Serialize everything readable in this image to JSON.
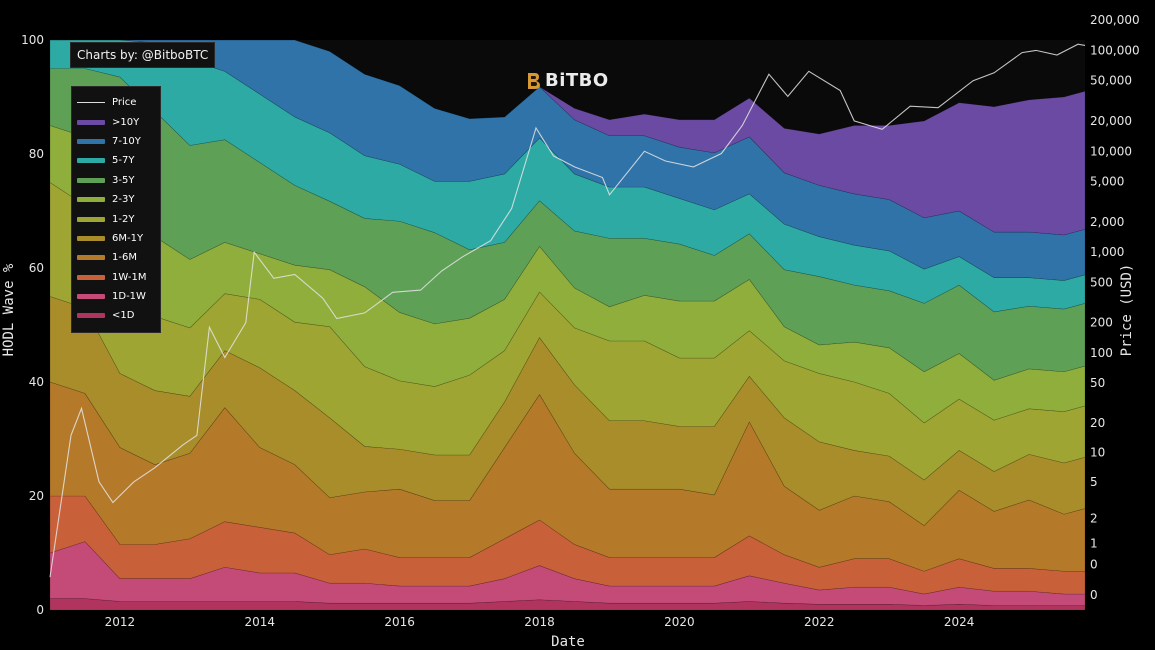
{
  "credit": "Charts by: @BitboBTC",
  "watermark": "BiTBO",
  "chart_data": {
    "type": "area",
    "subtype": "stacked_percent_with_price_overlay",
    "xlabel": "Date",
    "ylabel": "HODL Wave %",
    "y2label": "Price (USD)",
    "ylim": [
      0,
      100
    ],
    "y2_scale": "symlog",
    "x_ticks": [
      "2012",
      "2014",
      "2016",
      "2018",
      "2020",
      "2022",
      "2024"
    ],
    "y_ticks": [
      "0",
      "20",
      "40",
      "60",
      "80",
      "100"
    ],
    "y2_ticks": [
      {
        "label": "0",
        "value": 0.1
      },
      {
        "label": "0",
        "value": 0.5
      },
      {
        "label": "1",
        "value": 1
      },
      {
        "label": "2",
        "value": 2
      },
      {
        "label": "5",
        "value": 5
      },
      {
        "label": "10",
        "value": 10
      },
      {
        "label": "20",
        "value": 20
      },
      {
        "label": "50",
        "value": 50
      },
      {
        "label": "100",
        "value": 100
      },
      {
        "label": "200",
        "value": 200
      },
      {
        "label": "500",
        "value": 500
      },
      {
        "label": "1,000",
        "value": 1000
      },
      {
        "label": "2,000",
        "value": 2000
      },
      {
        "label": "5,000",
        "value": 5000
      },
      {
        "label": "10,000",
        "value": 10000
      },
      {
        "label": "20,000",
        "value": 20000
      },
      {
        "label": "50,000",
        "value": 50000
      },
      {
        "label": "100,000",
        "value": 100000
      },
      {
        "label": "200,000",
        "value": 200000
      }
    ],
    "legend_position": "top-left",
    "legend": [
      "Price",
      ">10Y",
      "7-10Y",
      "5-7Y",
      "3-5Y",
      "2-3Y",
      "1-2Y",
      "6M-1Y",
      "1-6M",
      "1W-1M",
      "1D-1W",
      "<1D"
    ],
    "x": [
      2011.0,
      2011.5,
      2012.0,
      2012.5,
      2013.0,
      2013.5,
      2014.0,
      2014.5,
      2015.0,
      2015.5,
      2016.0,
      2016.5,
      2017.0,
      2017.5,
      2018.0,
      2018.5,
      2019.0,
      2019.5,
      2020.0,
      2020.5,
      2021.0,
      2021.5,
      2022.0,
      2022.5,
      2023.0,
      2023.5,
      2024.0,
      2024.5,
      2025.0,
      2025.5,
      2025.8
    ],
    "series": [
      {
        "name": "<1D",
        "color": "#b0345e",
        "values": [
          2,
          2,
          1.5,
          1.5,
          1.5,
          1.5,
          1.5,
          1.5,
          1.2,
          1.2,
          1.2,
          1.2,
          1.2,
          1.5,
          1.8,
          1.5,
          1.2,
          1.2,
          1.2,
          1.2,
          1.5,
          1.2,
          1,
          1,
          1,
          0.8,
          1,
          0.8,
          0.8,
          0.8,
          0.8
        ]
      },
      {
        "name": "1D-1W",
        "color": "#c44a78",
        "values": [
          8,
          10,
          4,
          4,
          4,
          6,
          5,
          5,
          3.5,
          3.5,
          3,
          3,
          3,
          4,
          6,
          4,
          3,
          3,
          3,
          3,
          4.5,
          3.5,
          2.5,
          3,
          3,
          2,
          3,
          2.5,
          2.5,
          2,
          2
        ]
      },
      {
        "name": "1W-1M",
        "color": "#c8603a",
        "values": [
          10,
          8,
          6,
          6,
          7,
          8,
          8,
          7,
          5,
          6,
          5,
          5,
          5,
          7,
          8,
          6,
          5,
          5,
          5,
          5,
          7,
          5,
          4,
          5,
          5,
          4,
          5,
          4,
          4,
          4,
          4
        ]
      },
      {
        "name": "1-6M",
        "color": "#b47a2a",
        "values": [
          20,
          18,
          17,
          14,
          15,
          20,
          14,
          12,
          10,
          10,
          12,
          10,
          10,
          16,
          22,
          16,
          12,
          12,
          12,
          11,
          20,
          12,
          10,
          11,
          10,
          8,
          12,
          10,
          12,
          10,
          11
        ]
      },
      {
        "name": "6M-1Y",
        "color": "#a88d2a",
        "values": [
          15,
          15,
          13,
          13,
          10,
          10,
          14,
          13,
          14,
          8,
          7,
          8,
          8,
          8,
          10,
          12,
          12,
          12,
          11,
          12,
          8,
          12,
          12,
          8,
          8,
          8,
          7,
          7,
          8,
          9,
          9
        ]
      },
      {
        "name": "1-2Y",
        "color": "#9fa533",
        "values": [
          20,
          18,
          14,
          13,
          12,
          10,
          12,
          12,
          16,
          14,
          12,
          12,
          14,
          9,
          8,
          10,
          14,
          14,
          12,
          12,
          8,
          10,
          12,
          12,
          11,
          10,
          9,
          9,
          8,
          9,
          9
        ]
      },
      {
        "name": "2-3Y",
        "color": "#8fae3c",
        "values": [
          10,
          12,
          20,
          14,
          12,
          9,
          8,
          10,
          10,
          14,
          12,
          11,
          10,
          9,
          8,
          7,
          6,
          8,
          10,
          10,
          9,
          6,
          5,
          7,
          8,
          9,
          8,
          7,
          7,
          7,
          7
        ]
      },
      {
        "name": "3-5Y",
        "color": "#5fa057",
        "values": [
          10,
          12,
          18,
          22,
          20,
          18,
          16,
          14,
          12,
          12,
          16,
          16,
          12,
          10,
          8,
          10,
          12,
          10,
          10,
          8,
          8,
          10,
          12,
          10,
          10,
          12,
          12,
          12,
          11,
          11,
          11
        ]
      },
      {
        "name": "5-7Y",
        "color": "#2eaaa5",
        "values": [
          5,
          5,
          6.5,
          12,
          15,
          12,
          12,
          12,
          12,
          11,
          10,
          9,
          12,
          12,
          11,
          10,
          9,
          9,
          8,
          8,
          7,
          8,
          7,
          7,
          7,
          6,
          5,
          6,
          5,
          5,
          5
        ]
      },
      {
        "name": "7-10Y",
        "color": "#2f73a8",
        "values": [
          0,
          0,
          0,
          0.5,
          3.5,
          5.5,
          9.5,
          13.5,
          14.3,
          14.3,
          13.8,
          12.8,
          11,
          10,
          9,
          9.5,
          9,
          9,
          9,
          10,
          10,
          9,
          9,
          9,
          9,
          9,
          8,
          8,
          8,
          8,
          8
        ]
      },
      {
        "name": ">10Y",
        "color": "#6b4aa3",
        "values": [
          0,
          0,
          0,
          0,
          0,
          0,
          0,
          0,
          0,
          0,
          0,
          0,
          0,
          0,
          0,
          2,
          2.8,
          3.8,
          4.8,
          5.8,
          6.8,
          7.8,
          9,
          12,
          13,
          17,
          19,
          22,
          23.2,
          24.2,
          24.2
        ]
      }
    ],
    "price": {
      "name": "Price",
      "x": [
        2011.0,
        2011.3,
        2011.45,
        2011.7,
        2011.9,
        2012.2,
        2012.5,
        2012.9,
        2013.1,
        2013.28,
        2013.5,
        2013.8,
        2013.92,
        2014.2,
        2014.5,
        2014.9,
        2015.1,
        2015.5,
        2015.9,
        2016.3,
        2016.6,
        2016.9,
        2017.3,
        2017.6,
        2017.95,
        2018.2,
        2018.5,
        2018.9,
        2019.0,
        2019.5,
        2019.8,
        2020.2,
        2020.6,
        2020.9,
        2021.28,
        2021.55,
        2021.85,
        2022.3,
        2022.5,
        2022.9,
        2023.3,
        2023.7,
        2024.2,
        2024.5,
        2024.9,
        2025.1,
        2025.4,
        2025.7,
        2025.8
      ],
      "values": [
        0.3,
        15,
        28,
        5,
        3,
        5,
        7,
        12,
        15,
        180,
        90,
        200,
        1000,
        550,
        600,
        350,
        220,
        250,
        400,
        420,
        650,
        900,
        1300,
        2700,
        17000,
        9000,
        7000,
        5500,
        3700,
        10000,
        8000,
        7000,
        9500,
        18000,
        58000,
        35000,
        62000,
        40000,
        20000,
        16500,
        28000,
        27000,
        50000,
        60000,
        95000,
        100000,
        90000,
        115000,
        112000
      ]
    }
  }
}
